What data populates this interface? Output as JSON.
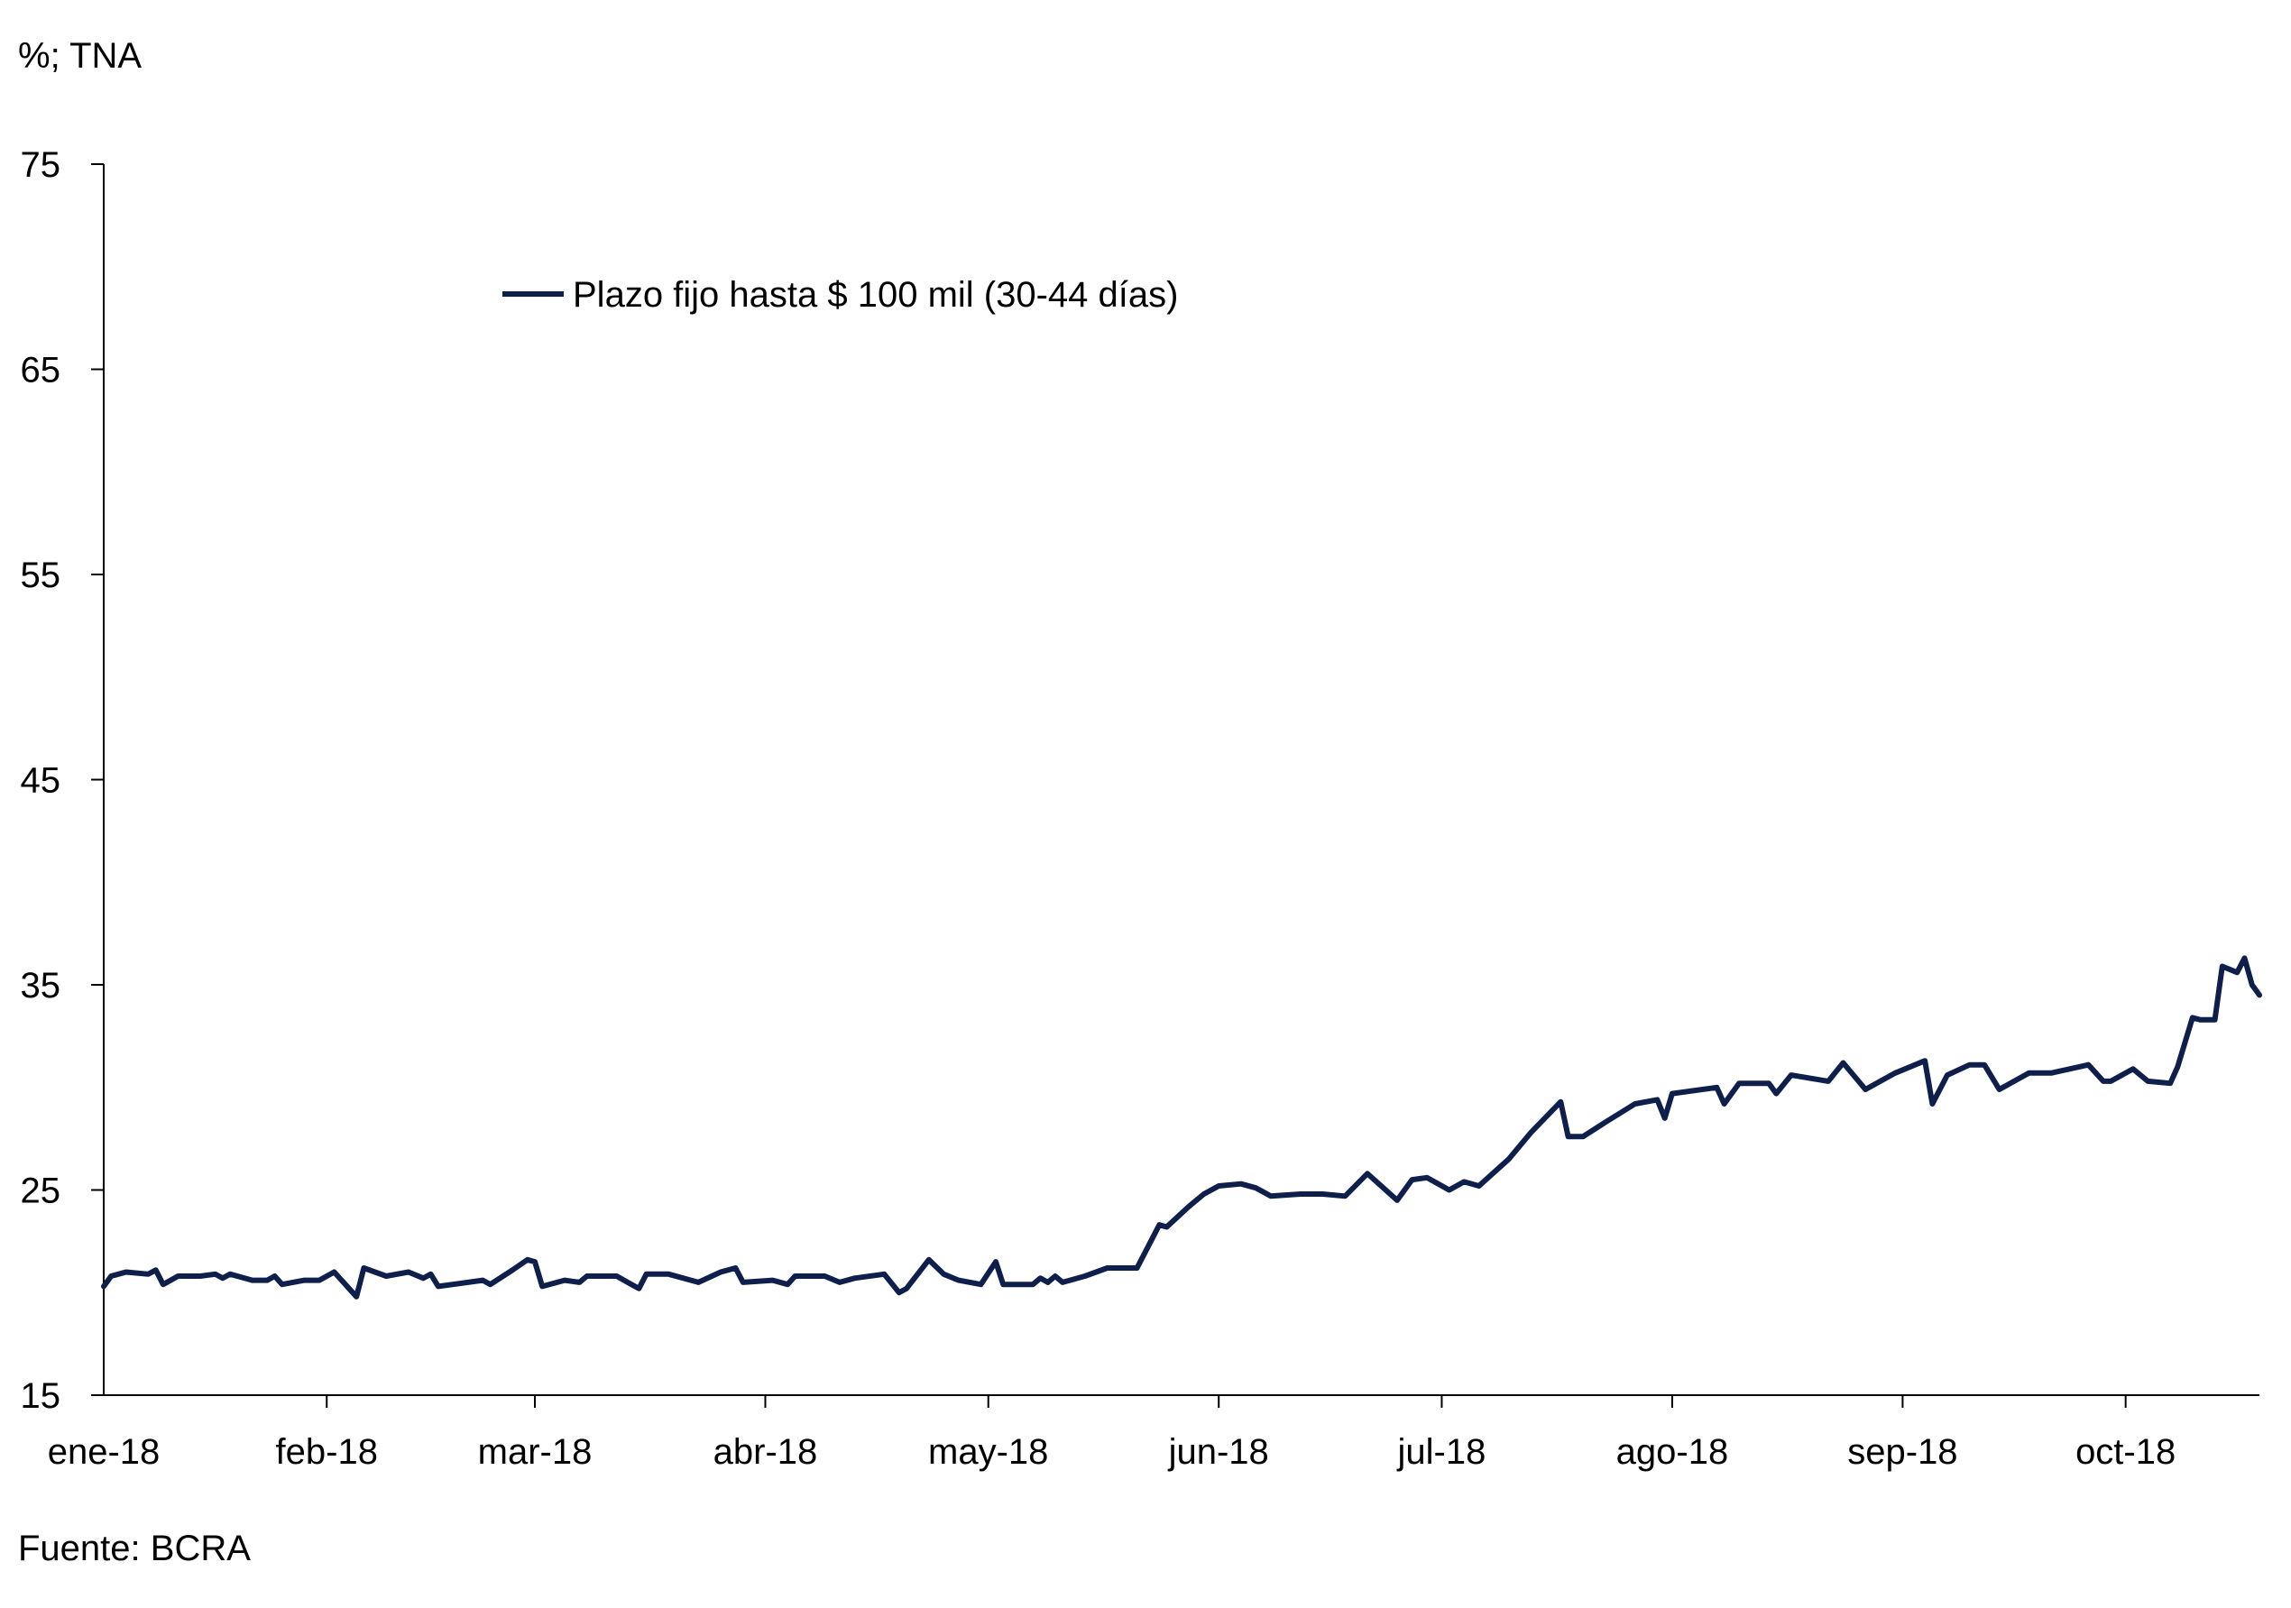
{
  "unit_label": "%; TNA",
  "source": "Fuente: BCRA",
  "chart_data": {
    "type": "line",
    "title": "",
    "xlabel": "",
    "ylabel": "%; TNA",
    "ylim": [
      15,
      75
    ],
    "yticks": [
      15,
      25,
      35,
      45,
      55,
      65,
      75
    ],
    "xlim": [
      "2018-01-02",
      "2018-10-19"
    ],
    "xticks": [
      {
        "label": "ene-18",
        "date": "2018-01-01"
      },
      {
        "label": "feb-18",
        "date": "2018-02-01"
      },
      {
        "label": "mar-18",
        "date": "2018-03-01"
      },
      {
        "label": "abr-18",
        "date": "2018-04-01"
      },
      {
        "label": "may-18",
        "date": "2018-05-01"
      },
      {
        "label": "jun-18",
        "date": "2018-06-01"
      },
      {
        "label": "jul-18",
        "date": "2018-07-01"
      },
      {
        "label": "ago-18",
        "date": "2018-08-01"
      },
      {
        "label": "sep-18",
        "date": "2018-09-01"
      },
      {
        "label": "oct-18",
        "date": "2018-10-01"
      }
    ],
    "grid": false,
    "legend_position": "top-left",
    "series": [
      {
        "name": "Plazo fijo hasta $ 100 mil (30-44 días)",
        "color": "#0f1f4b",
        "points": [
          [
            "2018-01-02",
            20.3
          ],
          [
            "2018-01-03",
            20.8
          ],
          [
            "2018-01-05",
            21.0
          ],
          [
            "2018-01-08",
            20.9
          ],
          [
            "2018-01-09",
            21.1
          ],
          [
            "2018-01-10",
            20.4
          ],
          [
            "2018-01-12",
            20.8
          ],
          [
            "2018-01-15",
            20.8
          ],
          [
            "2018-01-17",
            20.9
          ],
          [
            "2018-01-18",
            20.7
          ],
          [
            "2018-01-19",
            20.9
          ],
          [
            "2018-01-22",
            20.6
          ],
          [
            "2018-01-24",
            20.6
          ],
          [
            "2018-01-25",
            20.8
          ],
          [
            "2018-01-26",
            20.4
          ],
          [
            "2018-01-29",
            20.6
          ],
          [
            "2018-01-31",
            20.6
          ],
          [
            "2018-02-02",
            21.0
          ],
          [
            "2018-02-05",
            19.8
          ],
          [
            "2018-02-06",
            21.2
          ],
          [
            "2018-02-09",
            20.8
          ],
          [
            "2018-02-12",
            21.0
          ],
          [
            "2018-02-14",
            20.7
          ],
          [
            "2018-02-15",
            20.9
          ],
          [
            "2018-02-16",
            20.3
          ],
          [
            "2018-02-22",
            20.6
          ],
          [
            "2018-02-23",
            20.4
          ],
          [
            "2018-02-26",
            21.1
          ],
          [
            "2018-02-28",
            21.6
          ],
          [
            "2018-03-01",
            21.5
          ],
          [
            "2018-03-02",
            20.3
          ],
          [
            "2018-03-05",
            20.6
          ],
          [
            "2018-03-07",
            20.5
          ],
          [
            "2018-03-08",
            20.8
          ],
          [
            "2018-03-12",
            20.8
          ],
          [
            "2018-03-14",
            20.4
          ],
          [
            "2018-03-15",
            20.2
          ],
          [
            "2018-03-16",
            20.9
          ],
          [
            "2018-03-19",
            20.9
          ],
          [
            "2018-03-22",
            20.6
          ],
          [
            "2018-03-23",
            20.5
          ],
          [
            "2018-03-26",
            21.0
          ],
          [
            "2018-03-28",
            21.2
          ],
          [
            "2018-03-29",
            20.5
          ],
          [
            "2018-04-02",
            20.6
          ],
          [
            "2018-04-04",
            20.4
          ],
          [
            "2018-04-05",
            20.8
          ],
          [
            "2018-04-06",
            20.8
          ],
          [
            "2018-04-09",
            20.8
          ],
          [
            "2018-04-11",
            20.5
          ],
          [
            "2018-04-13",
            20.7
          ],
          [
            "2018-04-17",
            20.9
          ],
          [
            "2018-04-19",
            20.0
          ],
          [
            "2018-04-20",
            20.2
          ],
          [
            "2018-04-23",
            21.6
          ],
          [
            "2018-04-25",
            20.9
          ],
          [
            "2018-04-27",
            20.6
          ],
          [
            "2018-04-30",
            20.4
          ],
          [
            "2018-05-02",
            21.5
          ],
          [
            "2018-05-03",
            20.4
          ],
          [
            "2018-05-04",
            20.4
          ],
          [
            "2018-05-07",
            20.4
          ],
          [
            "2018-05-08",
            20.7
          ],
          [
            "2018-05-09",
            20.5
          ],
          [
            "2018-05-10",
            20.8
          ],
          [
            "2018-05-11",
            20.5
          ],
          [
            "2018-05-14",
            20.8
          ],
          [
            "2018-05-17",
            21.2
          ],
          [
            "2018-05-21",
            21.2
          ],
          [
            "2018-05-24",
            23.3
          ],
          [
            "2018-05-25",
            23.2
          ],
          [
            "2018-05-28",
            24.2
          ],
          [
            "2018-05-30",
            24.8
          ],
          [
            "2018-06-01",
            25.2
          ],
          [
            "2018-06-04",
            25.3
          ],
          [
            "2018-06-06",
            25.1
          ],
          [
            "2018-06-08",
            24.7
          ],
          [
            "2018-06-12",
            24.8
          ],
          [
            "2018-06-15",
            24.8
          ],
          [
            "2018-06-18",
            24.7
          ],
          [
            "2018-06-21",
            25.8
          ],
          [
            "2018-06-25",
            24.5
          ],
          [
            "2018-06-27",
            25.5
          ],
          [
            "2018-06-29",
            25.6
          ],
          [
            "2018-07-02",
            25.0
          ],
          [
            "2018-07-04",
            25.4
          ],
          [
            "2018-07-06",
            25.2
          ],
          [
            "2018-07-10",
            26.5
          ],
          [
            "2018-07-13",
            27.8
          ],
          [
            "2018-07-17",
            29.3
          ],
          [
            "2018-07-18",
            27.6
          ],
          [
            "2018-07-20",
            27.6
          ],
          [
            "2018-07-23",
            28.3
          ],
          [
            "2018-07-27",
            29.2
          ],
          [
            "2018-07-30",
            29.4
          ],
          [
            "2018-07-31",
            28.5
          ],
          [
            "2018-08-01",
            29.7
          ],
          [
            "2018-08-07",
            30.0
          ],
          [
            "2018-08-08",
            29.2
          ],
          [
            "2018-08-10",
            30.2
          ],
          [
            "2018-08-14",
            30.2
          ],
          [
            "2018-08-15",
            29.7
          ],
          [
            "2018-08-17",
            30.6
          ],
          [
            "2018-08-22",
            30.3
          ],
          [
            "2018-08-24",
            31.2
          ],
          [
            "2018-08-27",
            29.9
          ],
          [
            "2018-08-31",
            30.7
          ],
          [
            "2018-09-04",
            31.3
          ],
          [
            "2018-09-05",
            29.2
          ],
          [
            "2018-09-07",
            30.6
          ],
          [
            "2018-09-10",
            31.1
          ],
          [
            "2018-09-12",
            31.1
          ],
          [
            "2018-09-14",
            29.9
          ],
          [
            "2018-09-18",
            30.7
          ],
          [
            "2018-09-21",
            30.7
          ],
          [
            "2018-09-26",
            31.1
          ],
          [
            "2018-09-28",
            30.3
          ],
          [
            "2018-09-29",
            30.3
          ],
          [
            "2018-10-02",
            30.9
          ],
          [
            "2018-10-04",
            30.3
          ],
          [
            "2018-10-07",
            30.2
          ],
          [
            "2018-10-08",
            31.0
          ],
          [
            "2018-10-10",
            33.4
          ],
          [
            "2018-10-11",
            33.3
          ],
          [
            "2018-10-13",
            33.3
          ],
          [
            "2018-10-14",
            35.9
          ],
          [
            "2018-10-16",
            35.6
          ],
          [
            "2018-10-17",
            36.3
          ],
          [
            "2018-10-18",
            35.0
          ],
          [
            "2018-10-19",
            34.5
          ]
        ]
      }
    ]
  }
}
